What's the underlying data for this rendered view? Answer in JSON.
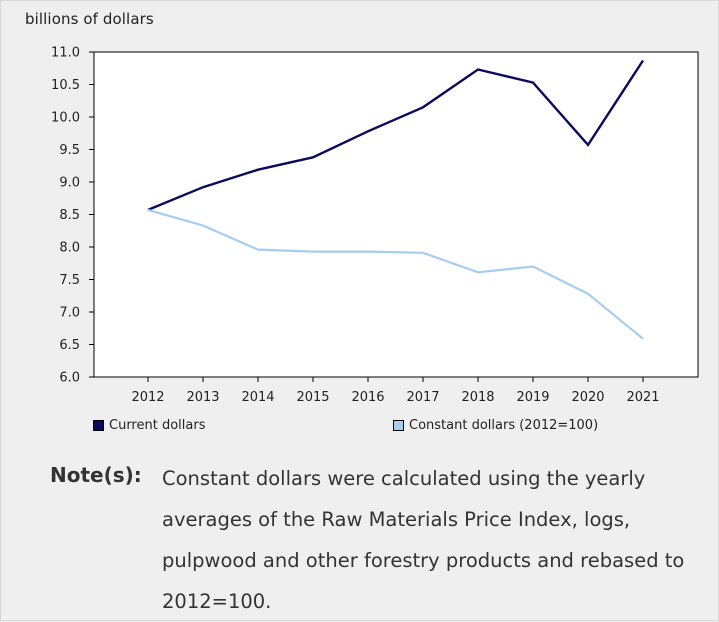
{
  "unit_label": "billions of dollars",
  "chart_data": {
    "type": "line",
    "x": [
      "2012",
      "2013",
      "2014",
      "2015",
      "2016",
      "2017",
      "2018",
      "2019",
      "2020",
      "2021"
    ],
    "y_ticks": [
      "6.0",
      "6.5",
      "7.0",
      "7.5",
      "8.0",
      "8.5",
      "9.0",
      "9.5",
      "10.0",
      "10.5",
      "11.0"
    ],
    "ylim": [
      6.0,
      11.0
    ],
    "ylabel": "billions of dollars",
    "grid": false,
    "legend_position": "bottom",
    "series": [
      {
        "name": "Current dollars",
        "color": "#0b0b5e",
        "values": [
          8.57,
          8.92,
          9.19,
          9.38,
          9.78,
          10.15,
          10.73,
          10.53,
          9.57,
          10.87
        ]
      },
      {
        "name": "Constant dollars (2012=100)",
        "color": "#a6cdf0",
        "values": [
          8.57,
          8.33,
          7.96,
          7.93,
          7.93,
          7.91,
          7.61,
          7.7,
          7.28,
          6.59
        ]
      }
    ]
  },
  "note": {
    "label": "Note(s):",
    "text": "Constant dollars were calculated using the yearly averages of the Raw Materials Price Index, logs, pulpwood and other forestry products and rebased to 2012=100."
  }
}
